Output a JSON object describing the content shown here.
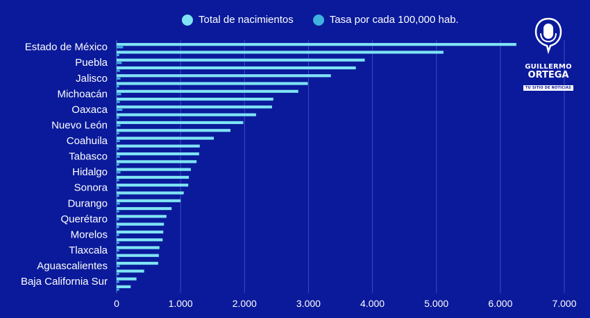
{
  "legend": {
    "items": [
      {
        "label": "Total de nacimientos",
        "color": "#7fe3f5"
      },
      {
        "label": "Tasa por cada 100,000 hab.",
        "color": "#3fb2e0"
      }
    ]
  },
  "logo": {
    "line1": "GUILLERMO",
    "line2": "ORTEGA",
    "tagline": "TU SITIO DE NOTICIAS",
    "icon": "microphone-icon"
  },
  "colors": {
    "background": "#0a1a9a",
    "bar_primary": "#7fe3f5",
    "bar_secondary": "#3fb2e0",
    "gridline": "#3a4cc0"
  },
  "chart_data": {
    "type": "bar",
    "orientation": "horizontal",
    "xlim": [
      0,
      7000
    ],
    "xticks": [
      "0",
      "1.000",
      "2.000",
      "3.000",
      "4.000",
      "5.000",
      "6.000",
      "7.000"
    ],
    "xtick_values": [
      0,
      1000,
      2000,
      3000,
      4000,
      5000,
      6000,
      7000
    ],
    "category_labels": [
      "Estado de México",
      "Puebla",
      "Jalisco",
      "Michoacán",
      "Oaxaca",
      "Nuevo León",
      "Coahuila",
      "Tabasco",
      "Hidalgo",
      "Sonora",
      "Durango",
      "Querétaro",
      "Morelos",
      "Tlaxcala",
      "Aguascalientes",
      "Baja California Sur"
    ],
    "label_rows": [
      0,
      2,
      4,
      6,
      8,
      10,
      12,
      14,
      16,
      18,
      20,
      22,
      24,
      26,
      28,
      30
    ],
    "series": [
      {
        "name": "Total de nacimientos",
        "color": "#7fe3f5",
        "values": [
          6250,
          5110,
          3880,
          3740,
          3350,
          2990,
          2840,
          2450,
          2430,
          2180,
          1980,
          1780,
          1520,
          1300,
          1290,
          1250,
          1160,
          1130,
          1120,
          1050,
          1000,
          860,
          780,
          740,
          730,
          720,
          670,
          660,
          650,
          430,
          310,
          220
        ]
      },
      {
        "name": "Tasa por cada 100,000 hab.",
        "color": "#3fb2e0",
        "values": [
          100,
          40,
          80,
          50,
          60,
          40,
          70,
          50,
          90,
          40,
          60,
          40,
          50,
          40,
          50,
          40,
          60,
          40,
          40,
          40,
          50,
          40,
          40,
          40,
          40,
          40,
          40,
          40,
          50,
          40,
          40,
          40
        ]
      }
    ],
    "grid": true
  }
}
